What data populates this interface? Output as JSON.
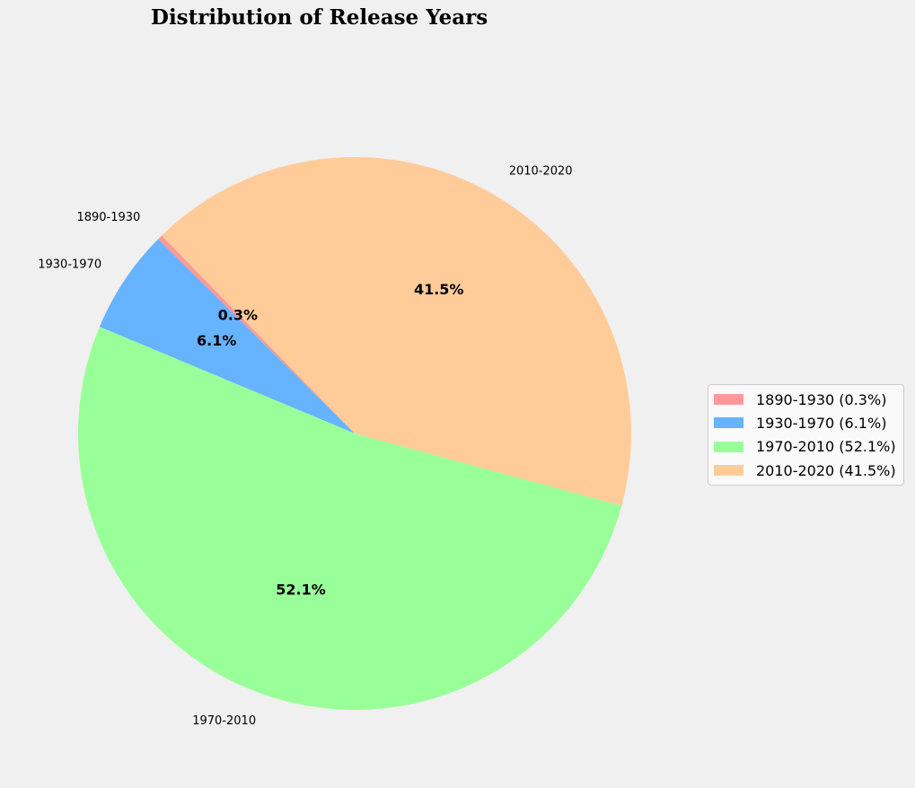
{
  "chart_data": {
    "type": "pie",
    "title": "Distribution of Release Years",
    "start_angle_deg": 134.25,
    "direction": "counterclockwise",
    "labels": [
      "1890-1930",
      "1930-1970",
      "1970-2010",
      "2010-2020"
    ],
    "values": [
      0.3,
      6.1,
      52.1,
      41.5
    ],
    "value_labels": [
      "0.3%",
      "6.1%",
      "52.1%",
      "41.5%"
    ],
    "colors": [
      "#ff9999",
      "#66b3ff",
      "#99ff99",
      "#ffcc99"
    ],
    "legend": {
      "placement": "center-right",
      "entries": [
        "1890-1930 (0.3%)",
        "1930-1970 (6.1%)",
        "1970-2010 (52.1%)",
        "2010-2020 (41.5%)"
      ]
    }
  }
}
